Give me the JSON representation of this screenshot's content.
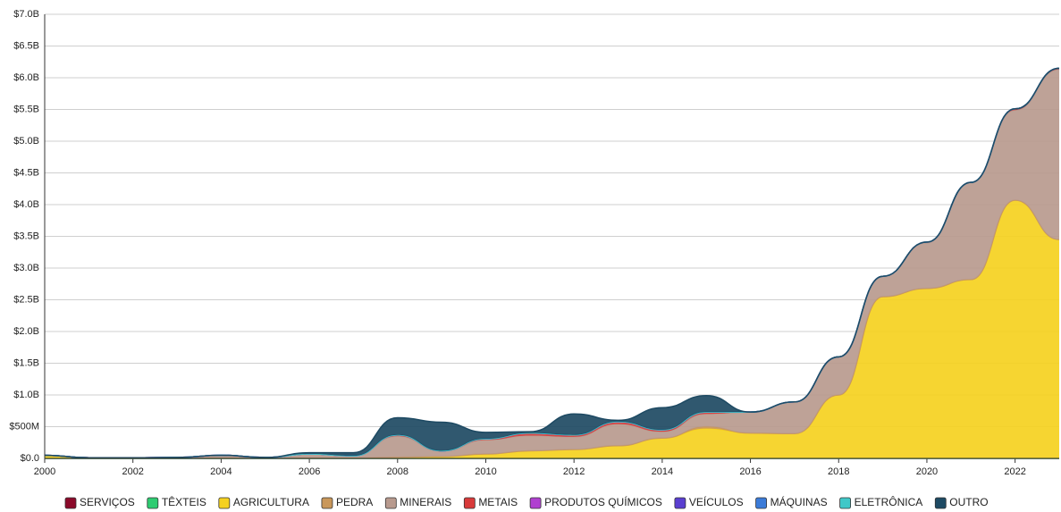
{
  "chart_data": {
    "type": "stacked-area",
    "x": [
      2000,
      2001,
      2002,
      2003,
      2004,
      2005,
      2006,
      2007,
      2008,
      2009,
      2010,
      2011,
      2012,
      2013,
      2014,
      2015,
      2016,
      2017,
      2018,
      2019,
      2020,
      2021,
      2022,
      2023
    ],
    "xlim": [
      2000,
      2023
    ],
    "xticks": [
      2000,
      2002,
      2004,
      2006,
      2008,
      2010,
      2012,
      2014,
      2016,
      2018,
      2020,
      2022
    ],
    "ylim": [
      0,
      7000000000
    ],
    "yticks": [
      {
        "value": 0,
        "label": "$0.0"
      },
      {
        "value": 500000000,
        "label": "$500M"
      },
      {
        "value": 1000000000,
        "label": "$1.0B"
      },
      {
        "value": 1500000000,
        "label": "$1.5B"
      },
      {
        "value": 2000000000,
        "label": "$2.0B"
      },
      {
        "value": 2500000000,
        "label": "$2.5B"
      },
      {
        "value": 3000000000,
        "label": "$3.0B"
      },
      {
        "value": 3500000000,
        "label": "$3.5B"
      },
      {
        "value": 4000000000,
        "label": "$4.0B"
      },
      {
        "value": 4500000000,
        "label": "$4.5B"
      },
      {
        "value": 5000000000,
        "label": "$5.0B"
      },
      {
        "value": 5500000000,
        "label": "$5.5B"
      },
      {
        "value": 6000000000,
        "label": "$6.0B"
      },
      {
        "value": 6500000000,
        "label": "$6.5B"
      },
      {
        "value": 7000000000,
        "label": "$7.0B"
      }
    ],
    "grid": true,
    "legend": "bottom",
    "series": [
      {
        "name": "SERVIÇOS",
        "color": "#8b0a2a",
        "values": [
          0,
          0,
          0,
          0,
          0,
          0,
          0,
          0,
          0,
          0,
          0,
          0,
          0,
          0,
          0,
          0,
          0,
          0,
          0,
          0,
          0,
          0,
          0,
          0
        ]
      },
      {
        "name": "TÊXTEIS",
        "color": "#2ecc71",
        "values": [
          0,
          0,
          0,
          0,
          0,
          0,
          0,
          0,
          0,
          0,
          0,
          0,
          0,
          0,
          0,
          0,
          0,
          0,
          0,
          0,
          0,
          0,
          0,
          0
        ]
      },
      {
        "name": "AGRICULTURA",
        "color": "#f5d11f",
        "values": [
          50000000,
          10000000,
          5000000,
          5000000,
          10000000,
          5000000,
          10000000,
          10000000,
          20000000,
          30000000,
          70000000,
          120000000,
          140000000,
          200000000,
          320000000,
          470000000,
          400000000,
          390000000,
          1000000000,
          2550000000,
          2680000000,
          2820000000,
          4070000000,
          3450000000
        ]
      },
      {
        "name": "PEDRA",
        "color": "#c9975a",
        "values": [
          0,
          0,
          0,
          0,
          0,
          0,
          0,
          0,
          0,
          0,
          0,
          0,
          0,
          0,
          0,
          30000000,
          0,
          0,
          0,
          0,
          0,
          0,
          0,
          0
        ]
      },
      {
        "name": "MINERAIS",
        "color": "#b89a8e",
        "values": [
          0,
          0,
          5000000,
          10000000,
          40000000,
          10000000,
          60000000,
          30000000,
          330000000,
          80000000,
          220000000,
          240000000,
          200000000,
          340000000,
          100000000,
          200000000,
          330000000,
          500000000,
          600000000,
          320000000,
          720000000,
          1530000000,
          1420000000,
          2680000000
        ]
      },
      {
        "name": "METAIS",
        "color": "#d83a3a",
        "values": [
          0,
          0,
          0,
          0,
          0,
          0,
          0,
          0,
          20000000,
          10000000,
          20000000,
          40000000,
          30000000,
          40000000,
          30000000,
          30000000,
          0,
          0,
          0,
          0,
          10000000,
          0,
          20000000,
          20000000
        ]
      },
      {
        "name": "PRODUTOS QUÍMICOS",
        "color": "#b040d0",
        "values": [
          0,
          0,
          0,
          0,
          0,
          0,
          0,
          0,
          0,
          0,
          0,
          0,
          0,
          0,
          0,
          0,
          0,
          0,
          0,
          0,
          0,
          0,
          0,
          0
        ]
      },
      {
        "name": "VEÍCULOS",
        "color": "#5a3fd0",
        "values": [
          0,
          0,
          0,
          0,
          0,
          0,
          0,
          0,
          0,
          0,
          0,
          0,
          0,
          0,
          0,
          0,
          0,
          0,
          0,
          0,
          0,
          0,
          0,
          0
        ]
      },
      {
        "name": "MÁQUINAS",
        "color": "#3b7bd8",
        "values": [
          0,
          0,
          0,
          0,
          0,
          0,
          0,
          0,
          0,
          0,
          0,
          0,
          0,
          0,
          0,
          0,
          0,
          0,
          0,
          0,
          0,
          0,
          0,
          0
        ]
      },
      {
        "name": "ELETRÔNICA",
        "color": "#40c8c8",
        "values": [
          0,
          0,
          0,
          0,
          0,
          0,
          0,
          0,
          0,
          0,
          0,
          0,
          0,
          0,
          0,
          0,
          0,
          0,
          0,
          0,
          0,
          0,
          0,
          0
        ]
      },
      {
        "name": "OUTRO",
        "color": "#1e4a63",
        "values": [
          0,
          0,
          0,
          0,
          0,
          0,
          20000000,
          50000000,
          270000000,
          450000000,
          100000000,
          20000000,
          330000000,
          20000000,
          350000000,
          260000000,
          0,
          0,
          0,
          0,
          0,
          0,
          0,
          0
        ]
      }
    ]
  }
}
